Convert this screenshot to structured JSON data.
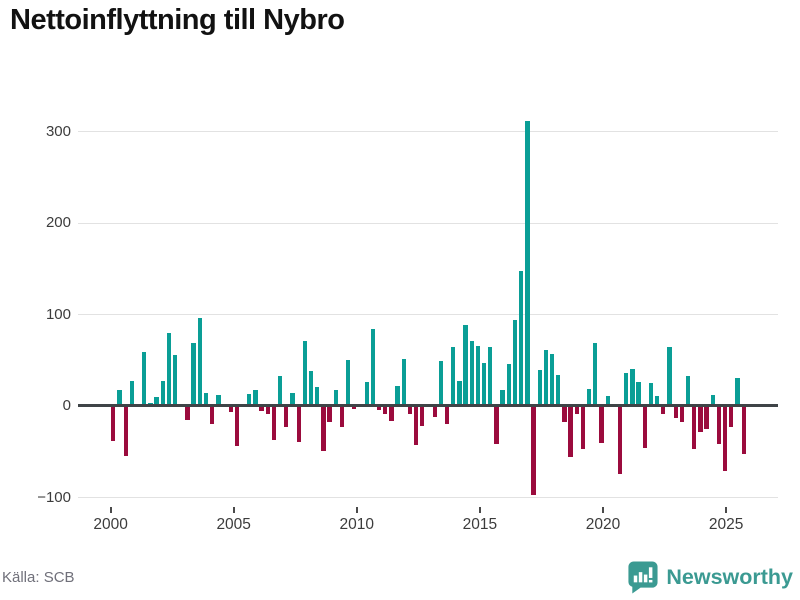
{
  "header": {
    "title": "Nettoinflyttning till Nybro"
  },
  "footer": {
    "source": "Källa: SCB",
    "brand": "Newsworthy"
  },
  "colors": {
    "positive": "#0a9e96",
    "negative": "#9b0b3d",
    "zero_line": "#3f4447",
    "gridline": "#e2e2e2",
    "brand_teal": "#3b9a92"
  },
  "chart_data": {
    "type": "bar",
    "title": "Nettoinflyttning till Nybro",
    "xlabel": "",
    "ylabel": "",
    "ylim": [
      -100,
      311
    ],
    "yticks": [
      300,
      200,
      100,
      0,
      -100
    ],
    "ytick_labels": [
      "300",
      "200",
      "100",
      "0",
      "−100"
    ],
    "xtick_labels": [
      "2000",
      "2005",
      "2010",
      "2015",
      "2020",
      "2025"
    ],
    "grid": "horizontal",
    "legend": "none",
    "positive_color": "#0a9e96",
    "negative_color": "#9b0b3d",
    "categories": [
      "2000 Q1",
      "2000 Q2",
      "2000 Q3",
      "2000 Q4",
      "2001 Q1",
      "2001 Q2",
      "2001 Q3",
      "2001 Q4",
      "2002 Q1",
      "2002 Q2",
      "2002 Q3",
      "2002 Q4",
      "2003 Q1",
      "2003 Q2",
      "2003 Q3",
      "2003 Q4",
      "2004 Q1",
      "2004 Q2",
      "2004 Q3",
      "2004 Q4",
      "2005 Q1",
      "2005 Q2",
      "2005 Q3",
      "2005 Q4",
      "2006 Q1",
      "2006 Q2",
      "2006 Q3",
      "2006 Q4",
      "2007 Q1",
      "2007 Q2",
      "2007 Q3",
      "2007 Q4",
      "2008 Q1",
      "2008 Q2",
      "2008 Q3",
      "2008 Q4",
      "2009 Q1",
      "2009 Q2",
      "2009 Q3",
      "2009 Q4",
      "2010 Q1",
      "2010 Q2",
      "2010 Q3",
      "2010 Q4",
      "2011 Q1",
      "2011 Q2",
      "2011 Q3",
      "2011 Q4",
      "2012 Q1",
      "2012 Q2",
      "2012 Q3",
      "2012 Q4",
      "2013 Q1",
      "2013 Q2",
      "2013 Q3",
      "2013 Q4",
      "2014 Q1",
      "2014 Q2",
      "2014 Q3",
      "2014 Q4",
      "2015 Q1",
      "2015 Q2",
      "2015 Q3",
      "2015 Q4",
      "2016 Q1",
      "2016 Q2",
      "2016 Q3",
      "2016 Q4",
      "2017 Q1",
      "2017 Q2",
      "2017 Q3",
      "2017 Q4",
      "2018 Q1",
      "2018 Q2",
      "2018 Q3",
      "2018 Q4",
      "2019 Q1",
      "2019 Q2",
      "2019 Q3",
      "2019 Q4",
      "2020 Q1",
      "2020 Q2",
      "2020 Q3",
      "2020 Q4",
      "2021 Q1",
      "2021 Q2",
      "2021 Q3",
      "2021 Q4",
      "2022 Q1",
      "2022 Q2",
      "2022 Q3",
      "2022 Q4",
      "2023 Q1",
      "2023 Q2",
      "2023 Q3",
      "2023 Q4",
      "2024 Q1",
      "2024 Q2",
      "2024 Q3",
      "2024 Q4",
      "2025 Q1",
      "2025 Q2",
      "2025 Q3"
    ],
    "values": [
      -38,
      18,
      -55,
      27,
      0,
      59,
      3,
      10,
      27,
      80,
      56,
      2,
      -15,
      69,
      96,
      14,
      -20,
      12,
      0,
      -7,
      -44,
      0,
      13,
      17,
      -6,
      -9,
      -37,
      33,
      -23,
      14,
      -39,
      71,
      38,
      21,
      -49,
      -17,
      17,
      -23,
      50,
      -3,
      0,
      26,
      84,
      -4,
      -9,
      -16,
      22,
      51,
      -9,
      -43,
      -22,
      2,
      -12,
      49,
      -20,
      65,
      27,
      89,
      71,
      66,
      47,
      65,
      -42,
      17,
      46,
      94,
      148,
      311,
      -97,
      39,
      61,
      57,
      34,
      -17,
      -56,
      -9,
      -47,
      19,
      69,
      -40,
      11,
      0,
      -74,
      36,
      40,
      26,
      -46,
      25,
      11,
      -9,
      65,
      -13,
      -17,
      33,
      -47,
      -28,
      -25,
      12,
      -41,
      -71,
      -23,
      31,
      -53
    ]
  }
}
